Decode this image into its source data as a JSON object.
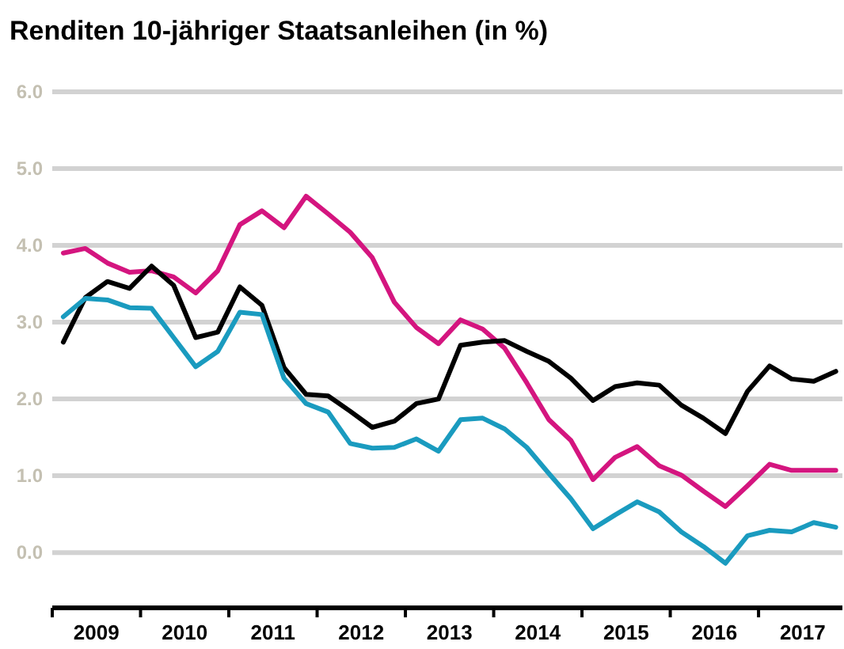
{
  "chart_data": {
    "type": "line",
    "title": "Renditen 10-jähriger Staatsanleihen (in %)",
    "x": [
      2009.125,
      2009.375,
      2009.625,
      2009.875,
      2010.125,
      2010.375,
      2010.625,
      2010.875,
      2011.125,
      2011.375,
      2011.625,
      2011.875,
      2012.125,
      2012.375,
      2012.625,
      2012.875,
      2013.125,
      2013.375,
      2013.625,
      2013.875,
      2014.125,
      2014.375,
      2014.625,
      2014.875,
      2015.125,
      2015.375,
      2015.625,
      2015.875,
      2016.125,
      2016.375,
      2016.625,
      2016.875,
      2017.125,
      2017.375,
      2017.625,
      2017.875
    ],
    "series": [
      {
        "color": "#d4157f",
        "values": [
          3.9,
          3.96,
          3.77,
          3.65,
          3.67,
          3.59,
          3.38,
          3.67,
          4.27,
          4.45,
          4.23,
          4.64,
          4.41,
          4.17,
          3.84,
          3.26,
          2.93,
          2.72,
          3.03,
          2.91,
          2.66,
          2.21,
          1.73,
          1.46,
          0.95,
          1.24,
          1.38,
          1.13,
          1.01,
          0.8,
          0.6,
          0.87,
          1.15,
          1.07,
          1.07,
          1.07
        ]
      },
      {
        "color": "#000000",
        "values": [
          2.74,
          3.32,
          3.53,
          3.44,
          3.73,
          3.48,
          2.8,
          2.87,
          3.46,
          3.22,
          2.41,
          2.06,
          2.04,
          1.84,
          1.63,
          1.71,
          1.94,
          2.0,
          2.7,
          2.74,
          2.76,
          2.62,
          2.49,
          2.27,
          1.98,
          2.16,
          2.21,
          2.18,
          1.92,
          1.75,
          1.55,
          2.1,
          2.43,
          2.26,
          2.23,
          2.36
        ]
      },
      {
        "color": "#1a9bbf",
        "values": [
          3.07,
          3.31,
          3.29,
          3.19,
          3.18,
          2.8,
          2.42,
          2.62,
          3.13,
          3.1,
          2.27,
          1.94,
          1.83,
          1.42,
          1.36,
          1.37,
          1.48,
          1.32,
          1.73,
          1.75,
          1.61,
          1.37,
          1.03,
          0.7,
          0.31,
          0.49,
          0.66,
          0.53,
          0.27,
          0.08,
          -0.14,
          0.22,
          0.29,
          0.27,
          0.39,
          0.33
        ]
      }
    ],
    "xlim": [
      2009,
      2017.95
    ],
    "xticks": [
      {
        "value": 2009,
        "label": null
      },
      {
        "value": 2009.5,
        "label": "2009"
      },
      {
        "value": 2010,
        "label": null
      },
      {
        "value": 2010.5,
        "label": "2010"
      },
      {
        "value": 2011,
        "label": null
      },
      {
        "value": 2011.5,
        "label": "2011"
      },
      {
        "value": 2012,
        "label": null
      },
      {
        "value": 2012.5,
        "label": "2012"
      },
      {
        "value": 2013,
        "label": null
      },
      {
        "value": 2013.5,
        "label": "2013"
      },
      {
        "value": 2014,
        "label": null
      },
      {
        "value": 2014.5,
        "label": "2014"
      },
      {
        "value": 2015,
        "label": null
      },
      {
        "value": 2015.5,
        "label": "2015"
      },
      {
        "value": 2016,
        "label": null
      },
      {
        "value": 2016.5,
        "label": "2016"
      },
      {
        "value": 2017,
        "label": null
      },
      {
        "value": 2017.5,
        "label": "2017"
      }
    ],
    "ylim": [
      -0.72,
      6
    ],
    "yticks": [
      {
        "value": 0,
        "label": "0.0"
      },
      {
        "value": 1,
        "label": "1.0"
      },
      {
        "value": 2,
        "label": "2.0"
      },
      {
        "value": 3,
        "label": "3.0"
      },
      {
        "value": 4,
        "label": "4.0"
      },
      {
        "value": 5,
        "label": "5.0"
      },
      {
        "value": 6,
        "label": "6.0"
      }
    ],
    "grid": "y",
    "line_style": "solid"
  }
}
